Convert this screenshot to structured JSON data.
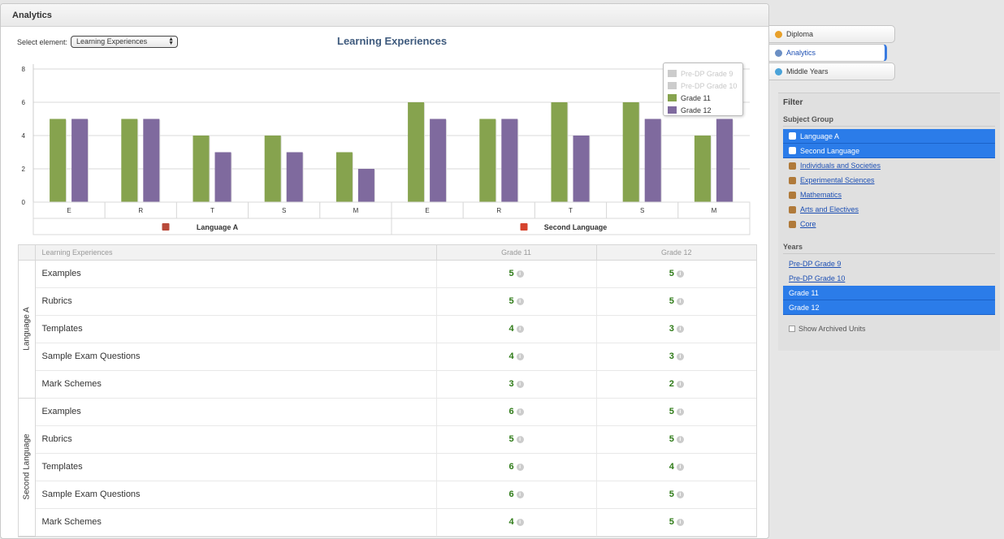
{
  "panel": {
    "title": "Analytics"
  },
  "selector": {
    "label": "Select element:",
    "value": "Learning Experiences"
  },
  "legend": [
    {
      "label": "Pre-DP Grade 9",
      "color": "#cccccc",
      "disabled": true
    },
    {
      "label": "Pre-DP Grade 10",
      "color": "#cccccc",
      "disabled": true
    },
    {
      "label": "Grade 11",
      "color": "#86a34e",
      "disabled": false
    },
    {
      "label": "Grade 12",
      "color": "#7f6a9e",
      "disabled": false
    }
  ],
  "chart_data": {
    "type": "bar",
    "title": "Learning Experiences",
    "categories": [
      "E",
      "R",
      "T",
      "S",
      "M",
      "E",
      "R",
      "T",
      "S",
      "M"
    ],
    "groups": [
      "Language A",
      "Second Language"
    ],
    "ylim": [
      0,
      8
    ],
    "yticks": [
      0,
      2,
      4,
      6,
      8
    ],
    "grid": true,
    "legend_position": "top-right",
    "series": [
      {
        "name": "Grade 11",
        "color": "#86a34e",
        "values": [
          5,
          5,
          4,
          4,
          3,
          6,
          5,
          6,
          6,
          4
        ]
      },
      {
        "name": "Grade 12",
        "color": "#7f6a9e",
        "values": [
          5,
          5,
          3,
          3,
          2,
          5,
          5,
          4,
          5,
          5
        ]
      }
    ]
  },
  "table": {
    "headers": [
      "Learning Experiences",
      "Grade 11",
      "Grade 12"
    ],
    "groups": [
      {
        "name": "Language A",
        "rows": [
          {
            "label": "Examples",
            "g11": "5",
            "g12": "5"
          },
          {
            "label": "Rubrics",
            "g11": "5",
            "g12": "5"
          },
          {
            "label": "Templates",
            "g11": "4",
            "g12": "3"
          },
          {
            "label": "Sample Exam Questions",
            "g11": "4",
            "g12": "3"
          },
          {
            "label": "Mark Schemes",
            "g11": "3",
            "g12": "2"
          }
        ]
      },
      {
        "name": "Second Language",
        "rows": [
          {
            "label": "Examples",
            "g11": "6",
            "g12": "5"
          },
          {
            "label": "Rubrics",
            "g11": "5",
            "g12": "5"
          },
          {
            "label": "Templates",
            "g11": "6",
            "g12": "4"
          },
          {
            "label": "Sample Exam Questions",
            "g11": "6",
            "g12": "5"
          },
          {
            "label": "Mark Schemes",
            "g11": "4",
            "g12": "5"
          }
        ]
      }
    ]
  },
  "tabs": [
    {
      "label": "Diploma",
      "active": false,
      "icon": "#e8a02a"
    },
    {
      "label": "Analytics",
      "active": true,
      "icon": "#6b8fc4"
    },
    {
      "label": "Middle Years",
      "active": false,
      "icon": "#4aa3d9"
    }
  ],
  "filter": {
    "title": "Filter",
    "subject_group_title": "Subject Group",
    "subject_groups": [
      {
        "label": "Language A",
        "selected": true
      },
      {
        "label": "Second Language",
        "selected": true
      },
      {
        "label": "Individuals and Societies",
        "selected": false
      },
      {
        "label": "Experimental Sciences",
        "selected": false
      },
      {
        "label": "Mathematics",
        "selected": false
      },
      {
        "label": "Arts and Electives",
        "selected": false
      },
      {
        "label": "Core",
        "selected": false
      }
    ],
    "years_title": "Years",
    "years": [
      {
        "label": "Pre-DP Grade 9",
        "selected": false
      },
      {
        "label": "Pre-DP Grade 10",
        "selected": false
      },
      {
        "label": "Grade 11",
        "selected": true
      },
      {
        "label": "Grade 12",
        "selected": true
      }
    ],
    "archived_label": "Show Archived Units"
  }
}
